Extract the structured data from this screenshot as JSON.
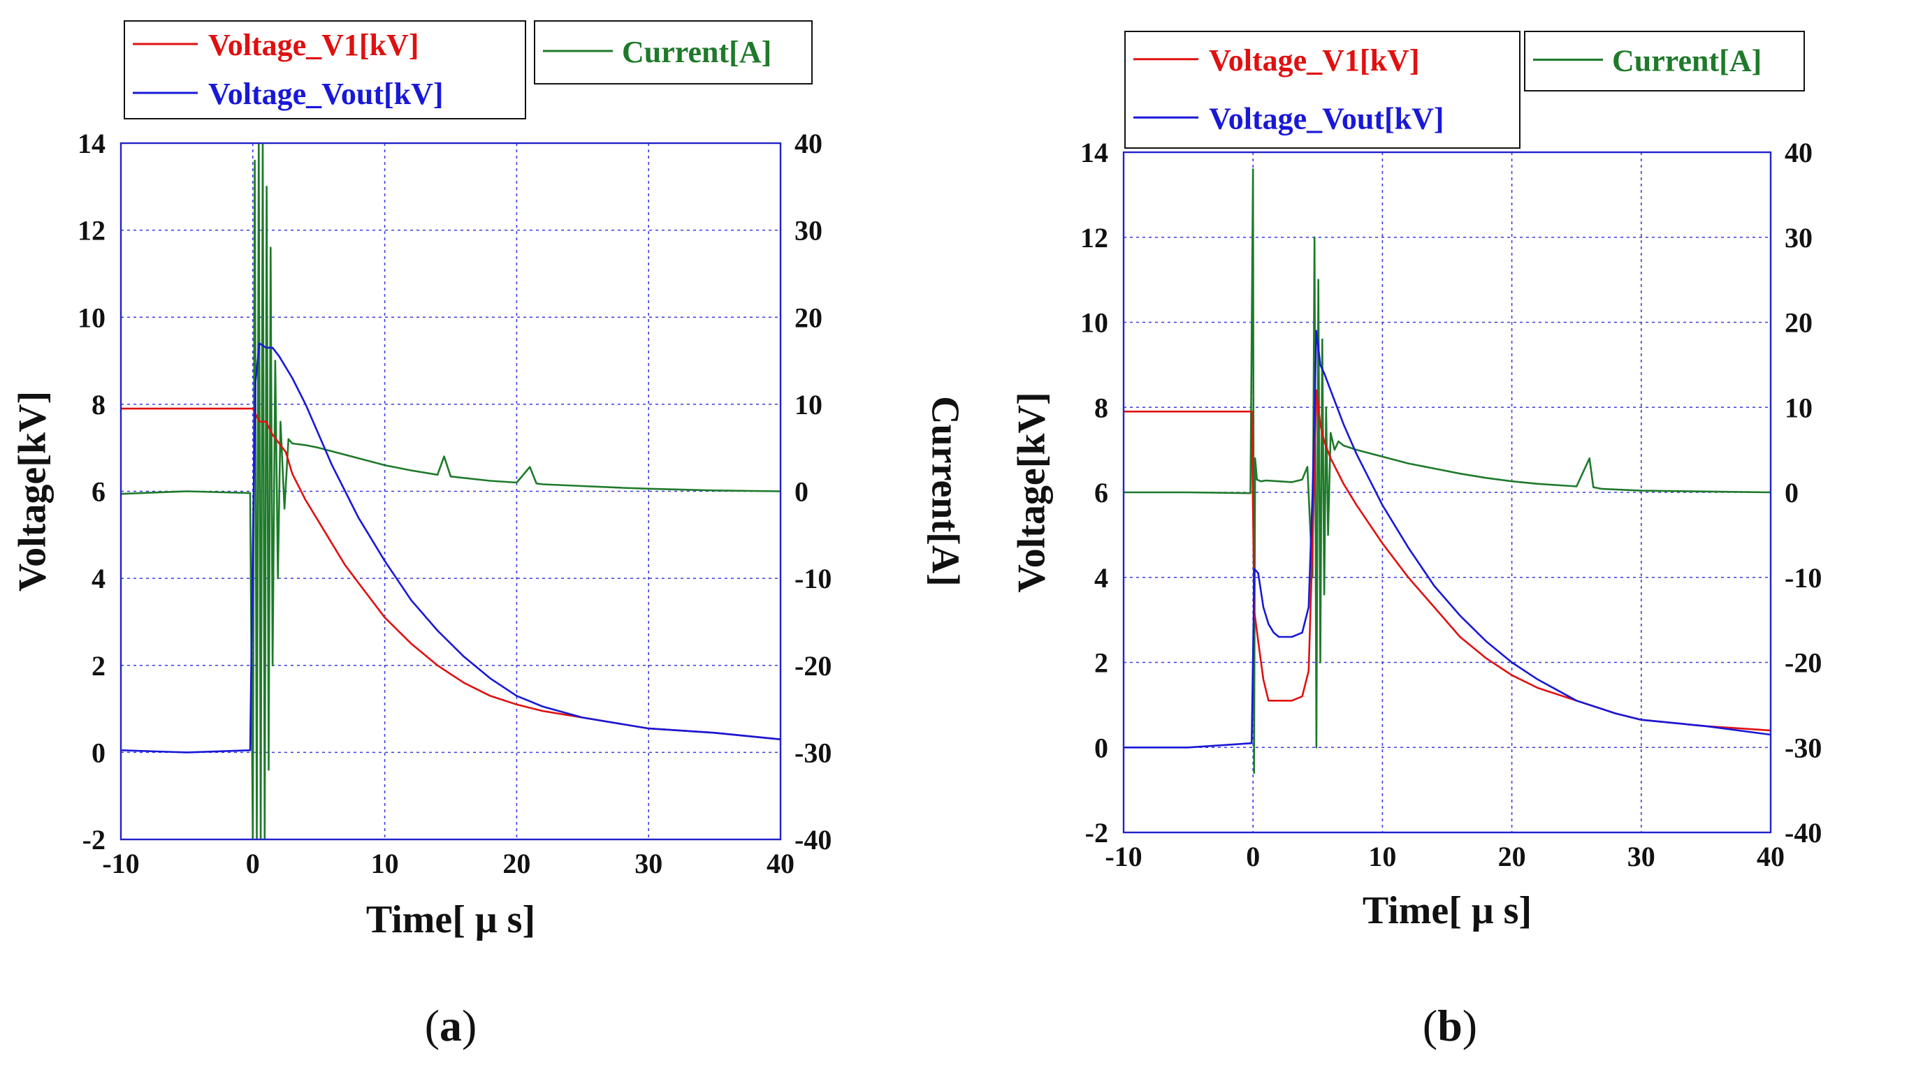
{
  "chart_data": [
    {
      "type": "line",
      "panel_label": "(a)",
      "panel_letter": "a",
      "xlabel": "Time[ μ s]",
      "ylabel_left": "Voltage[kV]",
      "ylabel_right": "Current[A]",
      "xlim": [
        -10,
        40
      ],
      "ylim_left": [
        -2,
        14
      ],
      "ylim_right": [
        -40,
        40
      ],
      "x_ticks": [
        -10,
        0,
        10,
        20,
        30,
        40
      ],
      "y_left_ticks": [
        -2,
        0,
        2,
        4,
        6,
        8,
        10,
        12,
        14
      ],
      "y_right_ticks": [
        -40,
        -30,
        -20,
        -10,
        0,
        10,
        20,
        30,
        40
      ],
      "grid": true,
      "legend_left": [
        "Voltage_V1[kV]",
        "Voltage_Vout[kV]"
      ],
      "legend_right": [
        "Current[A]"
      ],
      "series": [
        {
          "name": "Voltage_V1[kV]",
          "axis": "left",
          "color": "#e01010",
          "x": [
            -10,
            -5,
            0,
            0.5,
            1,
            1.5,
            2,
            2.5,
            3,
            4,
            5,
            6,
            7,
            8,
            10,
            12,
            14,
            16,
            18,
            20,
            22,
            25,
            28,
            30,
            35,
            40
          ],
          "y": [
            7.9,
            7.9,
            7.9,
            7.6,
            7.6,
            7.3,
            7.1,
            6.9,
            6.4,
            5.8,
            5.3,
            4.8,
            4.3,
            3.9,
            3.1,
            2.5,
            2.0,
            1.6,
            1.3,
            1.1,
            0.95,
            0.8,
            0.65,
            0.55,
            0.45,
            0.3
          ]
        },
        {
          "name": "Voltage_Vout[kV]",
          "axis": "left",
          "color": "#1818d8",
          "x": [
            -10,
            -5,
            -0.2,
            0,
            0.2,
            0.5,
            1,
            1.5,
            2,
            3,
            4,
            5,
            6,
            7,
            8,
            10,
            12,
            14,
            16,
            18,
            20,
            22,
            25,
            28,
            30,
            35,
            40
          ],
          "y": [
            0.05,
            0.0,
            0.05,
            4.8,
            8.5,
            9.4,
            9.3,
            9.3,
            9.1,
            8.6,
            8.0,
            7.3,
            6.6,
            6.0,
            5.4,
            4.4,
            3.5,
            2.8,
            2.2,
            1.7,
            1.3,
            1.05,
            0.8,
            0.65,
            0.55,
            0.45,
            0.3
          ]
        },
        {
          "name": "Current[A]",
          "axis": "right",
          "color": "#1e7a2a",
          "x": [
            -10,
            -5,
            -0.2,
            0,
            0.15,
            0.3,
            0.45,
            0.6,
            0.75,
            0.9,
            1.05,
            1.2,
            1.35,
            1.5,
            1.7,
            1.9,
            2.1,
            2.4,
            2.7,
            3,
            4,
            5,
            6,
            8,
            10,
            12,
            14,
            14.5,
            15,
            18,
            20,
            21,
            21.5,
            22,
            25,
            28,
            30,
            35,
            40
          ],
          "y": [
            -0.3,
            0.0,
            -0.2,
            -40,
            38,
            -40,
            40,
            -40,
            40,
            -40,
            35,
            -32,
            28,
            -20,
            15,
            -10,
            8,
            -2,
            6,
            5.5,
            5.3,
            5.0,
            4.6,
            3.8,
            3.0,
            2.4,
            1.9,
            4.0,
            1.7,
            1.2,
            1.0,
            2.8,
            0.9,
            0.8,
            0.6,
            0.4,
            0.3,
            0.1,
            0.0
          ]
        }
      ]
    },
    {
      "type": "line",
      "panel_label": "(b)",
      "panel_letter": "b",
      "xlabel": "Time[ μ s]",
      "ylabel_left": "Voltage[kV]",
      "ylabel_right": "Current[A]",
      "xlim": [
        -10,
        40
      ],
      "ylim_left": [
        -2,
        14
      ],
      "ylim_right": [
        -40,
        40
      ],
      "x_ticks": [
        -10,
        0,
        10,
        20,
        30,
        40
      ],
      "y_left_ticks": [
        -2,
        0,
        2,
        4,
        6,
        8,
        10,
        12,
        14
      ],
      "y_right_ticks": [
        -40,
        -30,
        -20,
        -10,
        0,
        10,
        20,
        30,
        40
      ],
      "grid": true,
      "legend_left": [
        "Voltage_V1[kV]",
        "Voltage_Vout[kV]"
      ],
      "legend_right": [
        "Current[A]"
      ],
      "series": [
        {
          "name": "Voltage_V1[kV]",
          "axis": "left",
          "color": "#e01010",
          "x": [
            -10,
            -5,
            -0.1,
            0.1,
            0.4,
            0.8,
            1.2,
            1.6,
            2,
            3,
            3.8,
            4.3,
            4.6,
            4.9,
            5.2,
            5.5,
            6,
            6.5,
            7,
            8,
            10,
            12,
            14,
            16,
            18,
            20,
            22,
            25,
            28,
            30,
            35,
            40
          ],
          "y": [
            7.9,
            7.9,
            7.9,
            3.2,
            2.5,
            1.6,
            1.1,
            1.1,
            1.1,
            1.1,
            1.2,
            1.8,
            4.8,
            8.4,
            7.6,
            7.2,
            6.8,
            6.5,
            6.2,
            5.7,
            4.8,
            4.0,
            3.3,
            2.6,
            2.1,
            1.7,
            1.4,
            1.1,
            0.8,
            0.65,
            0.5,
            0.4
          ]
        },
        {
          "name": "Voltage_Vout[kV]",
          "axis": "left",
          "color": "#1818d8",
          "x": [
            -10,
            -5,
            -0.1,
            0.1,
            0.4,
            0.8,
            1.2,
            1.6,
            2,
            3,
            3.8,
            4.3,
            4.6,
            4.9,
            5.2,
            5.5,
            6,
            6.5,
            7,
            8,
            10,
            12,
            14,
            16,
            18,
            20,
            22,
            25,
            28,
            30,
            35,
            40
          ],
          "y": [
            0.0,
            0.0,
            0.1,
            4.2,
            4.1,
            3.3,
            2.9,
            2.7,
            2.6,
            2.6,
            2.7,
            3.3,
            6.0,
            9.8,
            9.0,
            8.8,
            8.4,
            8.0,
            7.6,
            6.9,
            5.7,
            4.7,
            3.8,
            3.1,
            2.5,
            2.0,
            1.6,
            1.1,
            0.8,
            0.65,
            0.5,
            0.3
          ]
        },
        {
          "name": "Current[A]",
          "axis": "right",
          "color": "#1e7a2a",
          "x": [
            -10,
            -5,
            -0.2,
            0,
            0.08,
            0.16,
            0.3,
            0.6,
            1,
            2,
            3,
            3.8,
            4.2,
            4.6,
            4.75,
            4.9,
            5.05,
            5.2,
            5.35,
            5.5,
            5.65,
            5.8,
            6.0,
            6.3,
            6.6,
            7,
            8,
            10,
            12,
            14,
            16,
            18,
            20,
            22,
            25,
            26,
            26.3,
            27,
            30,
            35,
            40
          ],
          "y": [
            0.0,
            0.0,
            -0.1,
            38,
            -33,
            4,
            1.5,
            1.3,
            1.4,
            1.3,
            1.2,
            1.5,
            3.0,
            -10,
            30,
            -30,
            25,
            -20,
            18,
            -12,
            10,
            -5,
            7,
            5,
            6,
            5.5,
            5.0,
            4.2,
            3.4,
            2.8,
            2.2,
            1.7,
            1.3,
            1.0,
            0.7,
            4.0,
            0.6,
            0.4,
            0.2,
            0.1,
            0.0
          ]
        }
      ]
    }
  ]
}
